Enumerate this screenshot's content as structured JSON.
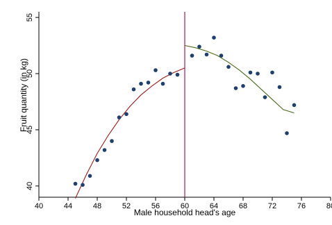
{
  "chart_data": {
    "type": "scatter",
    "title": "",
    "xlabel": "Male household head's age",
    "ylabel": "Fruit quantity (in kg)",
    "xlim": [
      40,
      80
    ],
    "ylim": [
      39,
      55.5
    ],
    "x_ticks": [
      40,
      44,
      48,
      52,
      56,
      60,
      64,
      68,
      72,
      76,
      80
    ],
    "y_ticks": [
      40,
      45,
      50,
      55
    ],
    "grid": false,
    "legend": "none",
    "cutoff": 60,
    "colors": {
      "points": "#1f3f6e",
      "left_fit": "#a01818",
      "right_fit": "#4a6a1a",
      "cutoff_line": "#b0185f"
    },
    "series": [
      {
        "points": [
          [
            45,
            40.2
          ],
          [
            46,
            40.1
          ],
          [
            47,
            40.9
          ],
          [
            48,
            42.3
          ],
          [
            49,
            43.2
          ],
          [
            50,
            44.0
          ],
          [
            51,
            46.1
          ],
          [
            52,
            46.4
          ],
          [
            53,
            48.6
          ],
          [
            54,
            49.1
          ],
          [
            55,
            49.2
          ],
          [
            56,
            50.3
          ],
          [
            57,
            49.1
          ],
          [
            58,
            50.0
          ],
          [
            59,
            49.9
          ],
          [
            61,
            51.6
          ],
          [
            62,
            52.4
          ],
          [
            63,
            51.7
          ],
          [
            64,
            53.2
          ],
          [
            65,
            51.6
          ],
          [
            66,
            50.6
          ],
          [
            67,
            48.7
          ],
          [
            68,
            48.9
          ],
          [
            69,
            50.1
          ],
          [
            70,
            50.0
          ],
          [
            71,
            47.9
          ],
          [
            72,
            50.1
          ],
          [
            73,
            48.8
          ],
          [
            74,
            44.7
          ],
          [
            75,
            47.2
          ]
        ]
      }
    ],
    "fits": [
      {
        "x": [
          45,
          46.5,
          48,
          49.5,
          51,
          52.5,
          54,
          55.5,
          57,
          58.5,
          60
        ],
        "y": [
          38.9,
          41.0,
          42.9,
          44.5,
          45.9,
          47.1,
          48.1,
          48.9,
          49.6,
          50.1,
          50.5
        ]
      },
      {
        "x": [
          60,
          61.5,
          63,
          64.5,
          66,
          67.5,
          69,
          70.5,
          72,
          73.5,
          75
        ],
        "y": [
          52.5,
          52.3,
          52.0,
          51.6,
          51.0,
          50.3,
          49.5,
          48.6,
          47.7,
          46.8,
          46.5
        ]
      }
    ]
  }
}
